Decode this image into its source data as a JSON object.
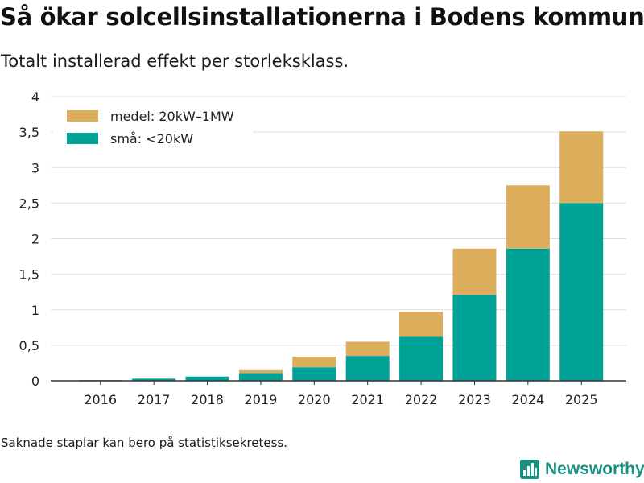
{
  "title": "Så ökar solcellsinstallationerna i Bodens kommun",
  "subtitle": "Totalt installerad effekt per storleksklass.",
  "note": "Saknade staplar kan bero på statistiksekretess.",
  "brand": "Newsworthy",
  "colors": {
    "small": "#00a296",
    "medium": "#dcad5a",
    "grid": "#dddddd",
    "axis": "#333333",
    "brand": "#1a9080"
  },
  "chart_data": {
    "type": "bar",
    "stacked": true,
    "categories": [
      "2016",
      "2017",
      "2018",
      "2019",
      "2020",
      "2021",
      "2022",
      "2023",
      "2024",
      "2025"
    ],
    "series": [
      {
        "name": "små: <20kW",
        "key": "small",
        "values": [
          0.01,
          0.03,
          0.06,
          0.11,
          0.19,
          0.35,
          0.62,
          1.21,
          1.86,
          2.5
        ]
      },
      {
        "name": "medel: 20kW–1MW",
        "key": "medium",
        "values": [
          0,
          0,
          0,
          0.04,
          0.15,
          0.2,
          0.35,
          0.65,
          0.89,
          1.01
        ]
      }
    ],
    "legend_order": [
      "medium",
      "small"
    ],
    "yticks": [
      "0",
      "0,5",
      "1",
      "1,5",
      "2",
      "2,5",
      "3",
      "3,5",
      "4"
    ],
    "ylim": [
      0,
      4
    ],
    "xlabel": "",
    "ylabel": "",
    "grid": true,
    "legend_position": "top-left"
  }
}
